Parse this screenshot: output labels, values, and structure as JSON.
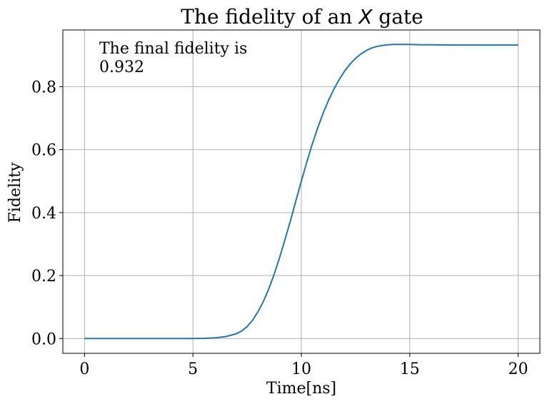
{
  "chart_data": {
    "type": "line",
    "title_prefix": "The fidelity of an ",
    "title_var": "X",
    "title_suffix": " gate",
    "xlabel": "Time[ns]",
    "ylabel": "Fidelity",
    "xlim": [
      -1,
      21
    ],
    "ylim": [
      -0.047,
      0.98
    ],
    "xticks": [
      0,
      5,
      10,
      15,
      20
    ],
    "xtick_labels": [
      "0",
      "5",
      "10",
      "15",
      "20"
    ],
    "yticks": [
      0.0,
      0.2,
      0.4,
      0.6,
      0.8
    ],
    "ytick_labels": [
      "0.0",
      "0.2",
      "0.4",
      "0.6",
      "0.8"
    ],
    "grid": true,
    "annotation": {
      "line1": "The final fidelity is",
      "line2": "0.932",
      "placement": "top-left"
    },
    "series": [
      {
        "color": "#1f77b4",
        "x": [
          0,
          1,
          2,
          3,
          4,
          5,
          5.5,
          6,
          6.5,
          7,
          7.25,
          7.5,
          7.75,
          8,
          8.25,
          8.5,
          8.75,
          9,
          9.25,
          9.5,
          9.75,
          10,
          10.25,
          10.5,
          10.75,
          11,
          11.25,
          11.5,
          11.75,
          12,
          12.25,
          12.5,
          12.75,
          13,
          13.25,
          13.5,
          13.75,
          14,
          14.25,
          14.5,
          14.75,
          15,
          15.5,
          16,
          17,
          18,
          19,
          20
        ],
        "y": [
          0.0,
          0.0,
          0.0,
          0.0,
          0.0,
          0.0,
          0.0005,
          0.002,
          0.006,
          0.015,
          0.024,
          0.038,
          0.058,
          0.085,
          0.118,
          0.158,
          0.205,
          0.258,
          0.315,
          0.375,
          0.438,
          0.5,
          0.56,
          0.617,
          0.668,
          0.715,
          0.756,
          0.792,
          0.823,
          0.85,
          0.872,
          0.89,
          0.904,
          0.915,
          0.923,
          0.928,
          0.931,
          0.933,
          0.934,
          0.934,
          0.934,
          0.934,
          0.933,
          0.933,
          0.932,
          0.932,
          0.932,
          0.932
        ]
      }
    ]
  }
}
